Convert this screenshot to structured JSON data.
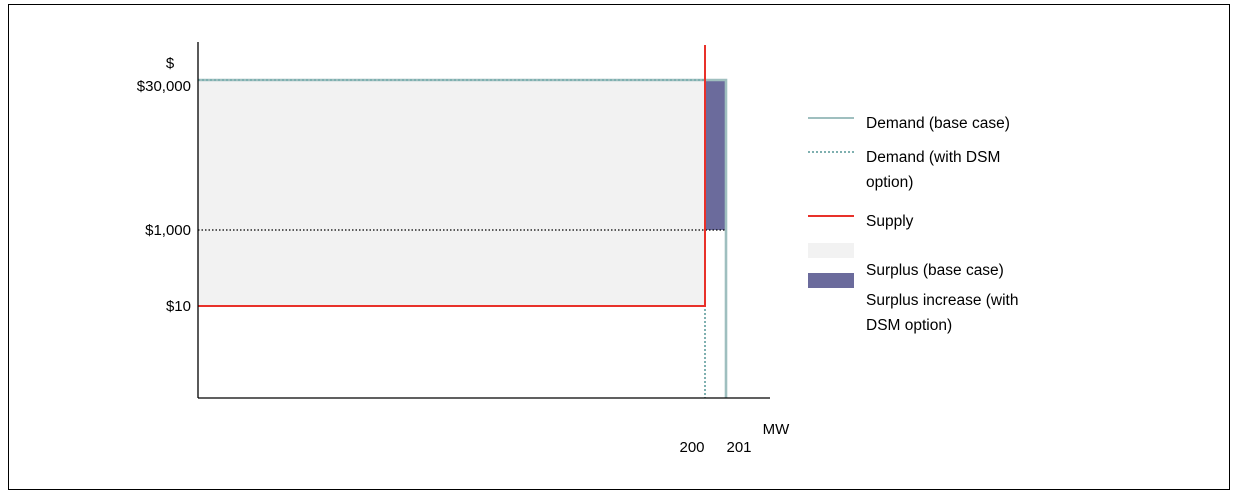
{
  "chart_data": {
    "type": "area",
    "ylabel": "$",
    "xlabel": "MW",
    "y_ticks": [
      {
        "label": "$30,000",
        "value": 30000
      },
      {
        "label": "$1,000",
        "value": 1000
      },
      {
        "label": "$10",
        "value": 10
      }
    ],
    "x_ticks": [
      {
        "label": "200",
        "value": 200
      },
      {
        "label": "201",
        "value": 201
      }
    ],
    "series": [
      {
        "name": "Demand (base case)",
        "kind": "line",
        "color": "#9fbfbf",
        "style": "solid",
        "points": [
          [
            0,
            30000
          ],
          [
            201,
            30000
          ],
          [
            201,
            0
          ]
        ]
      },
      {
        "name": "Demand (with DSM option)",
        "kind": "line",
        "color": "#7fb0b0",
        "style": "dotted",
        "points": [
          [
            0,
            30000
          ],
          [
            200,
            30000
          ],
          [
            200,
            0
          ]
        ]
      },
      {
        "name": "Supply",
        "kind": "line",
        "color": "#e8312a",
        "style": "solid",
        "points": [
          [
            0,
            10
          ],
          [
            200,
            10
          ],
          [
            200,
            30000
          ]
        ]
      },
      {
        "name": "Surplus (base case)",
        "kind": "area",
        "color": "#f2f2f2",
        "region": {
          "x": [
            0,
            200
          ],
          "y": [
            10,
            30000
          ]
        }
      },
      {
        "name": "Surplus increase (with DSM option)",
        "kind": "area",
        "color": "#6b6b9c",
        "region": {
          "x": [
            200,
            201
          ],
          "y": [
            1000,
            30000
          ]
        }
      }
    ],
    "reference_line": {
      "y": 1000,
      "x": [
        0,
        201
      ],
      "color": "#000000",
      "style": "dotted"
    },
    "legend": {
      "placement": "right",
      "entries": [
        {
          "lines": [
            "Demand (base case)"
          ],
          "swatch": "line-solid",
          "color": "#9fbfbf"
        },
        {
          "lines": [
            "Demand (with DSM",
            "option)"
          ],
          "swatch": "line-dotted",
          "color": "#7fb0b0"
        },
        {
          "lines": [
            "Supply"
          ],
          "swatch": "line-solid",
          "color": "#e8312a"
        },
        {
          "lines": [
            "Surplus (base case)"
          ],
          "swatch": "box",
          "color": "#f2f2f2"
        },
        {
          "lines": [
            "Surplus increase (with",
            "DSM option)"
          ],
          "swatch": "box",
          "color": "#6b6b9c"
        }
      ]
    },
    "grid": false
  }
}
